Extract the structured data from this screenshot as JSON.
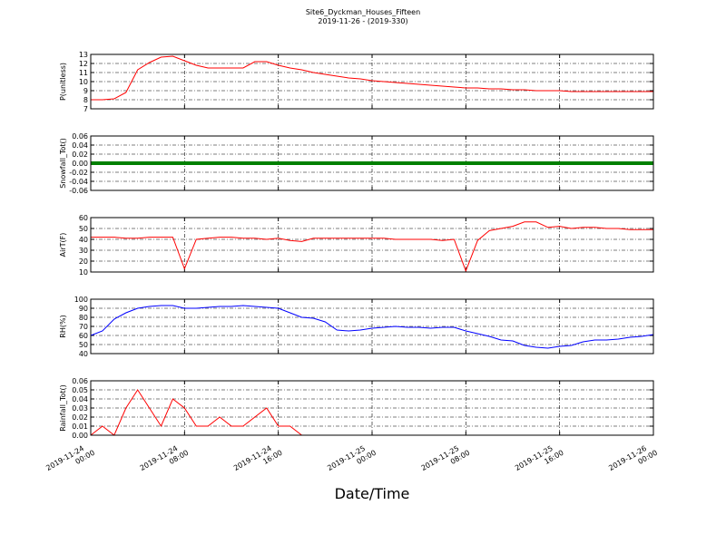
{
  "chart_data": [
    {
      "type": "line",
      "title": "Site6_Dyckman_Houses_Fifteen",
      "subtitle": "2019-11-26 - (2019-330)",
      "ylabel": "P(unitless)",
      "color": "#ff0000",
      "xlim": [
        "2019-11-24 00:00",
        "2019-11-26 00:00"
      ],
      "ylim": [
        7,
        13
      ],
      "yticks": [
        7,
        8,
        9,
        10,
        11,
        12,
        13
      ],
      "grid": true,
      "x": [
        "2019-11-24 00:00",
        "2019-11-24 01:00",
        "2019-11-24 02:00",
        "2019-11-24 03:00",
        "2019-11-24 04:00",
        "2019-11-24 05:00",
        "2019-11-24 06:00",
        "2019-11-24 07:00",
        "2019-11-24 08:00",
        "2019-11-24 09:00",
        "2019-11-24 10:00",
        "2019-11-24 11:00",
        "2019-11-24 12:00",
        "2019-11-24 13:00",
        "2019-11-24 14:00",
        "2019-11-24 15:00",
        "2019-11-24 16:00",
        "2019-11-24 17:00",
        "2019-11-24 18:00",
        "2019-11-24 19:00",
        "2019-11-24 20:00",
        "2019-11-24 21:00",
        "2019-11-24 22:00",
        "2019-11-24 23:00",
        "2019-11-25 00:00",
        "2019-11-25 01:00",
        "2019-11-25 02:00",
        "2019-11-25 03:00",
        "2019-11-25 04:00",
        "2019-11-25 05:00",
        "2019-11-25 06:00",
        "2019-11-25 07:00",
        "2019-11-25 08:00",
        "2019-11-25 09:00",
        "2019-11-25 10:00",
        "2019-11-25 11:00",
        "2019-11-25 12:00",
        "2019-11-25 13:00",
        "2019-11-25 14:00",
        "2019-11-25 15:00",
        "2019-11-25 16:00",
        "2019-11-25 17:00",
        "2019-11-25 18:00",
        "2019-11-25 19:00",
        "2019-11-25 20:00",
        "2019-11-25 21:00",
        "2019-11-25 22:00",
        "2019-11-25 23:00",
        "2019-11-26 00:00"
      ],
      "values": [
        8.0,
        8.0,
        8.1,
        8.8,
        11.3,
        12.1,
        12.7,
        12.8,
        12.3,
        11.8,
        11.5,
        11.5,
        11.5,
        11.5,
        12.2,
        12.2,
        11.8,
        11.5,
        11.3,
        11.0,
        10.8,
        10.6,
        10.4,
        10.3,
        10.1,
        10.0,
        9.9,
        9.8,
        9.7,
        9.6,
        9.5,
        9.4,
        9.3,
        9.3,
        9.2,
        9.2,
        9.1,
        9.1,
        9.0,
        9.0,
        9.0,
        8.9,
        8.9,
        8.9,
        8.9,
        8.9,
        8.9,
        8.9,
        8.9
      ]
    },
    {
      "type": "line",
      "ylabel": "Snowfall_Tot()",
      "color": "#008000",
      "xlim": [
        "2019-11-24 00:00",
        "2019-11-26 00:00"
      ],
      "ylim": [
        -0.06,
        0.06
      ],
      "yticks": [
        -0.06,
        -0.04,
        -0.02,
        {
          "value": 0,
          "label": "0.00"
        },
        0.02,
        0.04,
        0.06
      ],
      "grid": true,
      "x": [
        "2019-11-24 00:00",
        "2019-11-24 01:00",
        "2019-11-24 02:00",
        "2019-11-24 03:00",
        "2019-11-24 04:00",
        "2019-11-24 05:00",
        "2019-11-24 06:00",
        "2019-11-24 07:00",
        "2019-11-24 08:00",
        "2019-11-24 09:00",
        "2019-11-24 10:00",
        "2019-11-24 11:00",
        "2019-11-24 12:00",
        "2019-11-24 13:00",
        "2019-11-24 14:00",
        "2019-11-24 15:00",
        "2019-11-24 16:00",
        "2019-11-24 17:00",
        "2019-11-24 18:00",
        "2019-11-24 19:00",
        "2019-11-24 20:00",
        "2019-11-24 21:00",
        "2019-11-24 22:00",
        "2019-11-24 23:00",
        "2019-11-25 00:00",
        "2019-11-25 01:00",
        "2019-11-25 02:00",
        "2019-11-25 03:00",
        "2019-11-25 04:00",
        "2019-11-25 05:00",
        "2019-11-25 06:00",
        "2019-11-25 07:00",
        "2019-11-25 08:00",
        "2019-11-25 09:00",
        "2019-11-25 10:00",
        "2019-11-25 11:00",
        "2019-11-25 12:00",
        "2019-11-25 13:00",
        "2019-11-25 14:00",
        "2019-11-25 15:00",
        "2019-11-25 16:00",
        "2019-11-25 17:00",
        "2019-11-25 18:00",
        "2019-11-25 19:00",
        "2019-11-25 20:00",
        "2019-11-25 21:00",
        "2019-11-25 22:00",
        "2019-11-25 23:00",
        "2019-11-26 00:00"
      ],
      "values": [
        0,
        0,
        0,
        0,
        0,
        0,
        0,
        0,
        0,
        0,
        0,
        0,
        0,
        0,
        0,
        0,
        0,
        0,
        0,
        0,
        0,
        0,
        0,
        0,
        0,
        0,
        0,
        0,
        0,
        0,
        0,
        0,
        0,
        0,
        0,
        0,
        0,
        0,
        0,
        0,
        0,
        0,
        0,
        0,
        0,
        0,
        0,
        0,
        0
      ]
    },
    {
      "type": "line",
      "ylabel": "AirT(F)",
      "color": "#ff0000",
      "xlim": [
        "2019-11-24 00:00",
        "2019-11-26 00:00"
      ],
      "ylim": [
        10,
        60
      ],
      "yticks": [
        10,
        20,
        30,
        40,
        50,
        60
      ],
      "grid": true,
      "x": [
        "2019-11-24 00:00",
        "2019-11-24 01:00",
        "2019-11-24 02:00",
        "2019-11-24 03:00",
        "2019-11-24 04:00",
        "2019-11-24 05:00",
        "2019-11-24 06:00",
        "2019-11-24 07:00",
        "2019-11-24 08:00",
        "2019-11-24 09:00",
        "2019-11-24 10:00",
        "2019-11-24 11:00",
        "2019-11-24 12:00",
        "2019-11-24 13:00",
        "2019-11-24 14:00",
        "2019-11-24 15:00",
        "2019-11-24 16:00",
        "2019-11-24 17:00",
        "2019-11-24 18:00",
        "2019-11-24 19:00",
        "2019-11-24 20:00",
        "2019-11-24 21:00",
        "2019-11-24 22:00",
        "2019-11-24 23:00",
        "2019-11-25 00:00",
        "2019-11-25 01:00",
        "2019-11-25 02:00",
        "2019-11-25 03:00",
        "2019-11-25 04:00",
        "2019-11-25 05:00",
        "2019-11-25 06:00",
        "2019-11-25 07:00",
        "2019-11-25 08:00",
        "2019-11-25 09:00",
        "2019-11-25 10:00",
        "2019-11-25 11:00",
        "2019-11-25 12:00",
        "2019-11-25 13:00",
        "2019-11-25 14:00",
        "2019-11-25 15:00",
        "2019-11-25 16:00",
        "2019-11-25 17:00",
        "2019-11-25 18:00",
        "2019-11-25 19:00",
        "2019-11-25 20:00",
        "2019-11-25 21:00",
        "2019-11-25 22:00",
        "2019-11-25 23:00",
        "2019-11-26 00:00"
      ],
      "values": [
        42,
        42,
        42,
        41,
        41,
        42,
        42,
        42,
        13,
        40,
        41,
        42,
        42,
        41,
        41,
        40,
        41,
        39,
        38,
        41,
        41,
        41,
        41,
        41,
        41,
        41,
        40,
        40,
        40,
        40,
        39,
        40,
        11,
        39,
        48,
        50,
        52,
        56,
        56,
        51,
        52,
        50,
        51,
        51,
        50,
        50,
        49,
        49,
        49
      ]
    },
    {
      "type": "line",
      "ylabel": "RH(%)",
      "color": "#0000ff",
      "xlim": [
        "2019-11-24 00:00",
        "2019-11-26 00:00"
      ],
      "ylim": [
        40,
        100
      ],
      "yticks": [
        40,
        50,
        60,
        70,
        80,
        90,
        100
      ],
      "grid": true,
      "x": [
        "2019-11-24 00:00",
        "2019-11-24 01:00",
        "2019-11-24 02:00",
        "2019-11-24 03:00",
        "2019-11-24 04:00",
        "2019-11-24 05:00",
        "2019-11-24 06:00",
        "2019-11-24 07:00",
        "2019-11-24 08:00",
        "2019-11-24 09:00",
        "2019-11-24 10:00",
        "2019-11-24 11:00",
        "2019-11-24 12:00",
        "2019-11-24 13:00",
        "2019-11-24 14:00",
        "2019-11-24 15:00",
        "2019-11-24 16:00",
        "2019-11-24 17:00",
        "2019-11-24 18:00",
        "2019-11-24 19:00",
        "2019-11-24 20:00",
        "2019-11-24 21:00",
        "2019-11-24 22:00",
        "2019-11-24 23:00",
        "2019-11-25 00:00",
        "2019-11-25 01:00",
        "2019-11-25 02:00",
        "2019-11-25 03:00",
        "2019-11-25 04:00",
        "2019-11-25 05:00",
        "2019-11-25 06:00",
        "2019-11-25 07:00",
        "2019-11-25 08:00",
        "2019-11-25 09:00",
        "2019-11-25 10:00",
        "2019-11-25 11:00",
        "2019-11-25 12:00",
        "2019-11-25 13:00",
        "2019-11-25 14:00",
        "2019-11-25 15:00",
        "2019-11-25 16:00",
        "2019-11-25 17:00",
        "2019-11-25 18:00",
        "2019-11-25 19:00",
        "2019-11-25 20:00",
        "2019-11-25 21:00",
        "2019-11-25 22:00",
        "2019-11-25 23:00",
        "2019-11-26 00:00"
      ],
      "values": [
        60,
        65,
        78,
        85,
        90,
        92,
        93,
        93,
        90,
        90,
        91,
        92,
        92,
        93,
        92,
        91,
        90,
        85,
        80,
        79,
        75,
        66,
        65,
        66,
        68,
        69,
        70,
        69,
        69,
        68,
        69,
        69,
        65,
        62,
        59,
        55,
        54,
        49,
        47,
        46,
        48,
        49,
        53,
        55,
        55,
        56,
        58,
        59,
        61
      ]
    },
    {
      "type": "line",
      "ylabel": "Rainfall_Tot()",
      "xlabel": "Date/Time",
      "color": "#ff0000",
      "xlim": [
        "2019-11-24 00:00",
        "2019-11-26 00:00"
      ],
      "ylim": [
        0,
        0.06
      ],
      "yticks": [
        {
          "value": 0,
          "label": "0.00"
        },
        0.01,
        0.02,
        0.03,
        0.04,
        0.05,
        0.06
      ],
      "grid": true,
      "xticks": [
        "2019-11-24 00:00",
        "2019-11-24 08:00",
        "2019-11-24 16:00",
        "2019-11-25 00:00",
        "2019-11-25 08:00",
        "2019-11-25 16:00",
        "2019-11-26 00:00"
      ],
      "x": [
        "2019-11-24 00:00",
        "2019-11-24 01:00",
        "2019-11-24 02:00",
        "2019-11-24 03:00",
        "2019-11-24 04:00",
        "2019-11-24 05:00",
        "2019-11-24 06:00",
        "2019-11-24 07:00",
        "2019-11-24 08:00",
        "2019-11-24 09:00",
        "2019-11-24 10:00",
        "2019-11-24 11:00",
        "2019-11-24 12:00",
        "2019-11-24 13:00",
        "2019-11-24 14:00",
        "2019-11-24 15:00",
        "2019-11-24 16:00",
        "2019-11-24 17:00",
        "2019-11-24 18:00",
        "2019-11-24 19:00",
        "2019-11-24 20:00",
        "2019-11-24 21:00",
        "2019-11-24 22:00",
        "2019-11-24 23:00",
        "2019-11-25 00:00",
        "2019-11-25 01:00",
        "2019-11-25 02:00",
        "2019-11-25 03:00",
        "2019-11-25 04:00",
        "2019-11-25 05:00",
        "2019-11-25 06:00",
        "2019-11-25 07:00",
        "2019-11-25 08:00",
        "2019-11-25 09:00",
        "2019-11-25 10:00",
        "2019-11-25 11:00",
        "2019-11-25 12:00",
        "2019-11-25 13:00",
        "2019-11-25 14:00",
        "2019-11-25 15:00",
        "2019-11-25 16:00",
        "2019-11-25 17:00",
        "2019-11-25 18:00",
        "2019-11-25 19:00",
        "2019-11-25 20:00",
        "2019-11-25 21:00",
        "2019-11-25 22:00",
        "2019-11-25 23:00",
        "2019-11-26 00:00"
      ],
      "values": [
        0,
        0.01,
        0,
        0.03,
        0.05,
        0.03,
        0.01,
        0.04,
        0.03,
        0.01,
        0.01,
        0.02,
        0.01,
        0.01,
        0.02,
        0.03,
        0.01,
        0.01,
        0,
        0,
        0,
        0,
        0,
        0,
        0,
        0,
        0,
        0,
        0,
        0,
        0,
        0,
        0,
        0,
        0,
        0,
        0,
        0,
        0,
        0,
        0,
        0,
        0,
        0,
        0,
        0,
        0,
        0,
        0
      ]
    }
  ]
}
